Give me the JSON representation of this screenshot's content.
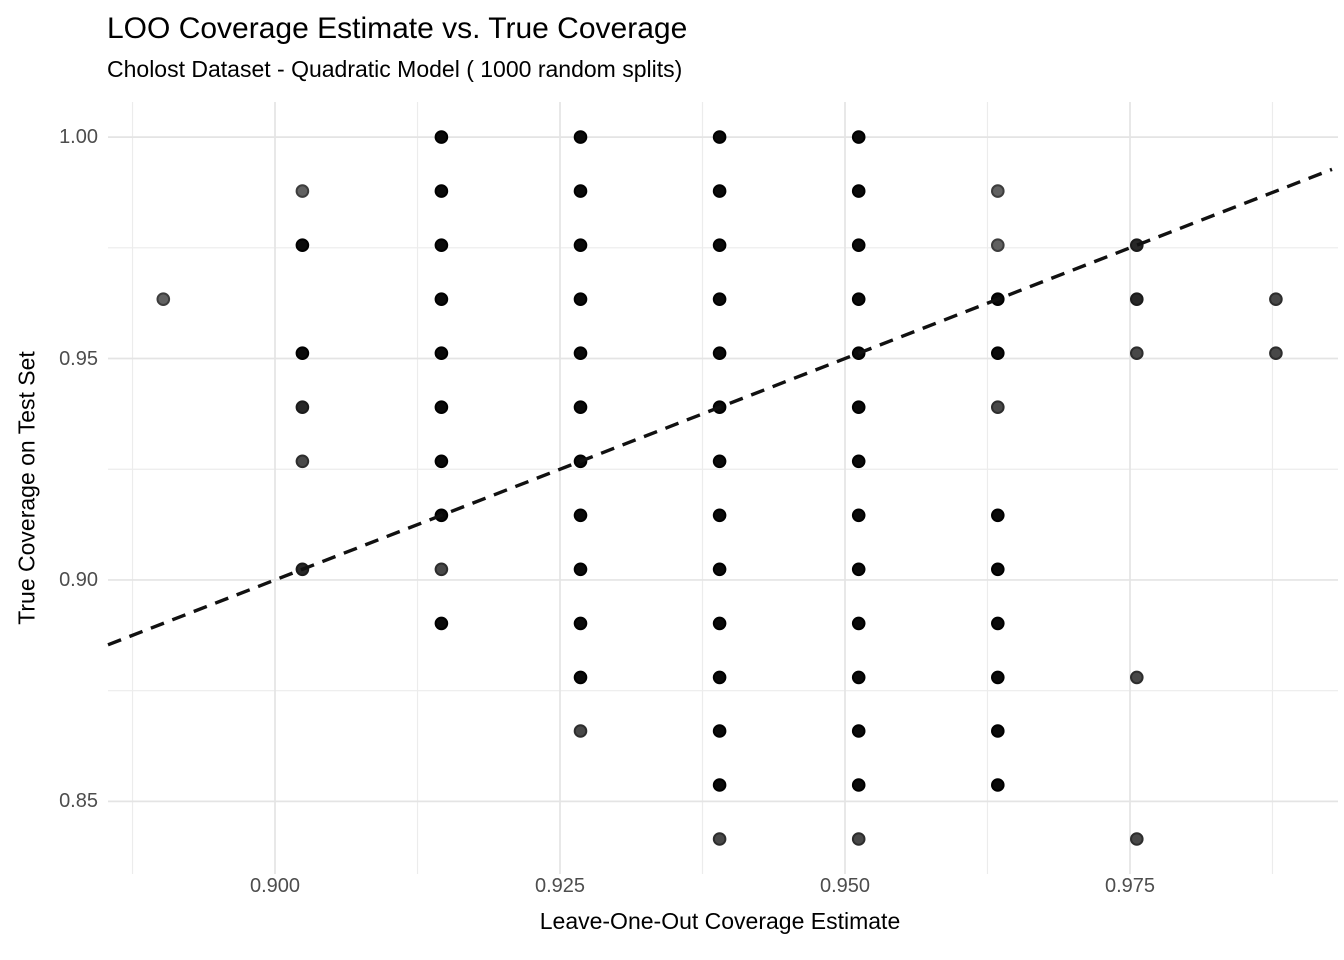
{
  "title": "LOO Coverage Estimate vs. True Coverage",
  "subtitle": "Cholost Dataset - Quadratic Model ( 1000 random splits)",
  "chart_data": {
    "type": "scatter",
    "title": "LOO Coverage Estimate vs. True Coverage",
    "subtitle": "Cholost Dataset - Quadratic Model ( 1000 random splits)",
    "xlabel": "Leave-One-Out Coverage Estimate",
    "ylabel": "True Coverage on Test Set",
    "xlim": [
      0.88535,
      0.99272
    ],
    "ylim": [
      0.8336,
      1.00793
    ],
    "grid": true,
    "legend": "none",
    "x_ticks": {
      "values": [
        0.9,
        0.925,
        0.95,
        0.975
      ],
      "labels": [
        "0.900",
        "0.925",
        "0.950",
        "0.975"
      ]
    },
    "y_ticks": {
      "values": [
        0.85,
        0.9,
        0.95,
        1.0
      ],
      "labels": [
        "0.85",
        "0.90",
        "0.95",
        "1.00"
      ]
    },
    "x_minor_gridlines": [
      0.8875,
      0.9125,
      0.9375,
      0.9625,
      0.9875
    ],
    "y_minor_gridlines": [
      0.875,
      0.925,
      0.975
    ],
    "reference_line": {
      "type": "identity",
      "slope": 1,
      "intercept": 0,
      "style": "dashed",
      "color": "#111111"
    },
    "colors": {
      "background": "#ffffff",
      "gridline_major": "#e4e4e4",
      "gridline_minor": "#ececec",
      "tick_label": "#4d4d4d",
      "text": "#000000"
    },
    "shade_levels": {
      "1": {
        "fill": "#616161",
        "stroke": "#3d3d3d",
        "meaning": "low overlap"
      },
      "2": {
        "fill": "#484848",
        "stroke": "#2d2d2d",
        "meaning": "medium overlap"
      },
      "3": {
        "fill": "#272727",
        "stroke": "#1b1b1b",
        "meaning": "high overlap"
      },
      "4": {
        "fill": "#0a0a0a",
        "stroke": "#000000",
        "meaning": "full black overlap"
      }
    },
    "points_format": [
      "loo_coverage_estimate",
      "true_coverage_on_test_set",
      "shade_level"
    ],
    "points": [
      [
        0.8902,
        0.9634,
        1
      ],
      [
        0.9024,
        0.9878,
        1
      ],
      [
        0.9024,
        0.9756,
        4
      ],
      [
        0.9024,
        0.9512,
        4
      ],
      [
        0.9024,
        0.939,
        3
      ],
      [
        0.9024,
        0.9268,
        2
      ],
      [
        0.9024,
        0.9024,
        3
      ],
      [
        0.9146,
        1.0,
        4
      ],
      [
        0.9146,
        0.9878,
        4
      ],
      [
        0.9146,
        0.9756,
        4
      ],
      [
        0.9146,
        0.9634,
        4
      ],
      [
        0.9146,
        0.9512,
        4
      ],
      [
        0.9146,
        0.939,
        4
      ],
      [
        0.9146,
        0.9268,
        4
      ],
      [
        0.9146,
        0.9146,
        4
      ],
      [
        0.9146,
        0.9024,
        2
      ],
      [
        0.9146,
        0.8902,
        4
      ],
      [
        0.9268,
        1.0,
        4
      ],
      [
        0.9268,
        0.9878,
        4
      ],
      [
        0.9268,
        0.9756,
        4
      ],
      [
        0.9268,
        0.9634,
        4
      ],
      [
        0.9268,
        0.9512,
        4
      ],
      [
        0.9268,
        0.939,
        4
      ],
      [
        0.9268,
        0.9268,
        4
      ],
      [
        0.9268,
        0.9146,
        4
      ],
      [
        0.9268,
        0.9024,
        4
      ],
      [
        0.9268,
        0.8902,
        4
      ],
      [
        0.9268,
        0.878,
        4
      ],
      [
        0.9268,
        0.8659,
        2
      ],
      [
        0.939,
        1.0,
        4
      ],
      [
        0.939,
        0.9878,
        4
      ],
      [
        0.939,
        0.9756,
        4
      ],
      [
        0.939,
        0.9634,
        4
      ],
      [
        0.939,
        0.9512,
        4
      ],
      [
        0.939,
        0.939,
        4
      ],
      [
        0.939,
        0.9268,
        4
      ],
      [
        0.939,
        0.9146,
        4
      ],
      [
        0.939,
        0.9024,
        4
      ],
      [
        0.939,
        0.8902,
        4
      ],
      [
        0.939,
        0.878,
        4
      ],
      [
        0.939,
        0.8659,
        4
      ],
      [
        0.939,
        0.8537,
        4
      ],
      [
        0.939,
        0.8415,
        2
      ],
      [
        0.9512,
        1.0,
        4
      ],
      [
        0.9512,
        0.9878,
        4
      ],
      [
        0.9512,
        0.9756,
        4
      ],
      [
        0.9512,
        0.9634,
        4
      ],
      [
        0.9512,
        0.9512,
        4
      ],
      [
        0.9512,
        0.939,
        4
      ],
      [
        0.9512,
        0.9268,
        4
      ],
      [
        0.9512,
        0.9146,
        4
      ],
      [
        0.9512,
        0.9024,
        4
      ],
      [
        0.9512,
        0.8902,
        4
      ],
      [
        0.9512,
        0.878,
        4
      ],
      [
        0.9512,
        0.8659,
        4
      ],
      [
        0.9512,
        0.8537,
        4
      ],
      [
        0.9512,
        0.8415,
        2
      ],
      [
        0.9634,
        0.9878,
        1
      ],
      [
        0.9634,
        0.9756,
        1
      ],
      [
        0.9634,
        0.9634,
        4
      ],
      [
        0.9634,
        0.9512,
        4
      ],
      [
        0.9634,
        0.939,
        2
      ],
      [
        0.9634,
        0.9146,
        4
      ],
      [
        0.9634,
        0.9024,
        4
      ],
      [
        0.9634,
        0.8902,
        4
      ],
      [
        0.9634,
        0.878,
        4
      ],
      [
        0.9634,
        0.8659,
        4
      ],
      [
        0.9634,
        0.8537,
        4
      ],
      [
        0.9756,
        0.9756,
        3
      ],
      [
        0.9756,
        0.9634,
        3
      ],
      [
        0.9756,
        0.9512,
        2
      ],
      [
        0.9756,
        0.878,
        2
      ],
      [
        0.9756,
        0.8415,
        2
      ],
      [
        0.9878,
        0.9634,
        2
      ],
      [
        0.9878,
        0.9512,
        2
      ]
    ]
  }
}
